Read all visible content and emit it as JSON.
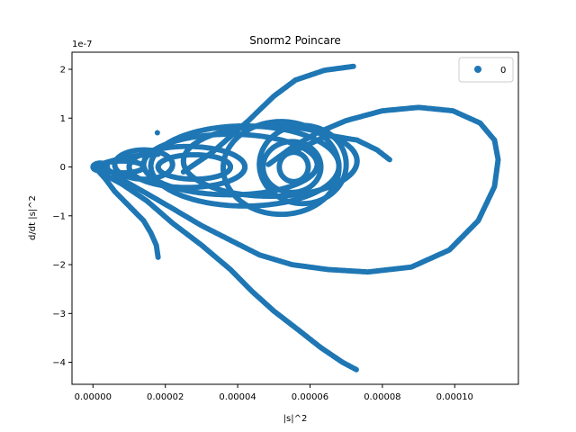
{
  "chart_data": {
    "type": "scatter",
    "title": "Snorm2 Poincare",
    "xlabel": "|s|^2",
    "ylabel": "d/dt |s|^2",
    "y_offset_label": "1e-7",
    "xlim": [
      -5.8e-06,
      0.0001176
    ],
    "ylim": [
      -4.45,
      2.35
    ],
    "x_ticks": [
      0,
      2e-05,
      4e-05,
      6e-05,
      8e-05,
      0.0001
    ],
    "x_tick_labels": [
      "0.00000",
      "0.00002",
      "0.00004",
      "0.00006",
      "0.00008",
      "0.00010"
    ],
    "y_ticks": [
      -4,
      -3,
      -2,
      -1,
      0,
      1,
      2
    ],
    "y_tick_labels": [
      "−4",
      "−3",
      "−2",
      "−1",
      "0",
      "1",
      "2"
    ],
    "grid": false,
    "legend_position": "top-right",
    "series": [
      {
        "name": "0",
        "color": "#1f77b4",
        "point_radius": 3,
        "curves": [
          {
            "kind": "path",
            "points": [
              [
                5e-07,
                0
              ],
              [
                3.5e-06,
                -0.25
              ],
              [
                6e-06,
                -0.5
              ],
              [
                1e-05,
                -0.8
              ],
              [
                1.4e-05,
                -1.1
              ],
              [
                1.6e-05,
                -1.35
              ],
              [
                1.75e-05,
                -1.6
              ],
              [
                1.8e-05,
                -1.85
              ]
            ]
          },
          {
            "kind": "path",
            "points": [
              [
                3e-06,
                -0.15
              ],
              [
                8e-06,
                -0.35
              ],
              [
                1.5e-05,
                -0.7
              ],
              [
                2.2e-05,
                -1.15
              ],
              [
                3e-05,
                -1.6
              ],
              [
                3.8e-05,
                -2.1
              ],
              [
                4.4e-05,
                -2.55
              ],
              [
                5e-05,
                -2.95
              ],
              [
                5.7e-05,
                -3.35
              ],
              [
                6.3e-05,
                -3.7
              ],
              [
                6.9e-05,
                -4.0
              ],
              [
                7.28e-05,
                -4.15
              ]
            ]
          },
          {
            "kind": "path",
            "points": [
              [
                5e-07,
                0.03
              ],
              [
                4e-06,
                -0.05
              ],
              [
                9e-06,
                -0.3
              ],
              [
                1.5e-05,
                -0.55
              ],
              [
                2.2e-05,
                -0.85
              ],
              [
                3e-05,
                -1.2
              ],
              [
                3.8e-05,
                -1.5
              ],
              [
                4.6e-05,
                -1.8
              ],
              [
                5.5e-05,
                -2.0
              ],
              [
                6.5e-05,
                -2.1
              ],
              [
                7.6e-05,
                -2.15
              ],
              [
                8.8e-05,
                -2.05
              ],
              [
                9.85e-05,
                -1.7
              ],
              [
                0.0001065,
                -1.1
              ],
              [
                0.000111,
                -0.4
              ],
              [
                0.000112,
                0.15
              ],
              [
                0.000111,
                0.55
              ],
              [
                0.000107,
                0.9
              ],
              [
                9.95e-05,
                1.15
              ],
              [
                9e-05,
                1.22
              ],
              [
                8e-05,
                1.15
              ],
              [
                7e-05,
                0.95
              ],
              [
                6.2e-05,
                0.7
              ],
              [
                5.5e-05,
                0.4
              ],
              [
                4.85e-05,
                0.05
              ]
            ]
          },
          {
            "kind": "path",
            "points": [
              [
                2.5e-05,
                -0.1
              ],
              [
                3.3e-05,
                0.3
              ],
              [
                4.3e-05,
                0.95
              ],
              [
                5e-05,
                1.45
              ],
              [
                5.6e-05,
                1.78
              ],
              [
                6.4e-05,
                1.98
              ],
              [
                7.2e-05,
                2.06
              ]
            ]
          },
          {
            "kind": "path",
            "points": [
              [
                5.5e-05,
                0.3
              ],
              [
                6.5e-05,
                0.65
              ],
              [
                7.3e-05,
                0.55
              ],
              [
                7.85e-05,
                0.35
              ],
              [
                8.2e-05,
                0.15
              ]
            ]
          },
          {
            "kind": "path",
            "points": [
              [
                5e-07,
                0.02
              ],
              [
                4e-06,
                0.1
              ],
              [
                8e-06,
                0.18
              ],
              [
                1.2e-05,
                0.23
              ],
              [
                1.8e-05,
                0.26
              ]
            ]
          },
          {
            "kind": "ellipse",
            "cx": 2.8e-05,
            "cy": 0.0,
            "rx": 1e-05,
            "ry": 0.25
          },
          {
            "kind": "ellipse",
            "cx": 2.6e-05,
            "cy": 0.0,
            "rx": 1.6e-05,
            "ry": 0.42
          },
          {
            "kind": "ellipse",
            "cx": 3.8e-05,
            "cy": 0.05,
            "rx": 2.4e-05,
            "ry": 0.62
          },
          {
            "kind": "ellipse",
            "cx": 4.2e-05,
            "cy": 0.02,
            "rx": 2.6e-05,
            "ry": 0.82
          },
          {
            "kind": "ellipse",
            "cx": 4.9e-05,
            "cy": 0.12,
            "rx": 2.4e-05,
            "ry": 0.72
          },
          {
            "kind": "ellipse",
            "cx": 5.2e-05,
            "cy": -0.02,
            "rx": 1.6e-05,
            "ry": 0.95
          },
          {
            "kind": "ellipse",
            "cx": 5.5e-05,
            "cy": 0.0,
            "rx": 8e-06,
            "ry": 0.52
          },
          {
            "kind": "ellipse",
            "cx": 5.55e-05,
            "cy": 0.0,
            "rx": 4e-06,
            "ry": 0.3
          },
          {
            "kind": "ellipse",
            "cx": 5.8e-05,
            "cy": 0.05,
            "rx": 1.2e-05,
            "ry": 0.8
          },
          {
            "kind": "ellipse",
            "cx": 8e-06,
            "cy": 0.0,
            "rx": 6e-06,
            "ry": 0.12
          },
          {
            "kind": "ellipse",
            "cx": 1.4e-05,
            "cy": 0.05,
            "rx": 8e-06,
            "ry": 0.3
          },
          {
            "kind": "ellipse",
            "cx": 2e-06,
            "cy": 0.0,
            "rx": 2e-06,
            "ry": 0.08
          },
          {
            "kind": "point",
            "x": 1.78e-05,
            "y": 0.7
          }
        ]
      }
    ]
  }
}
